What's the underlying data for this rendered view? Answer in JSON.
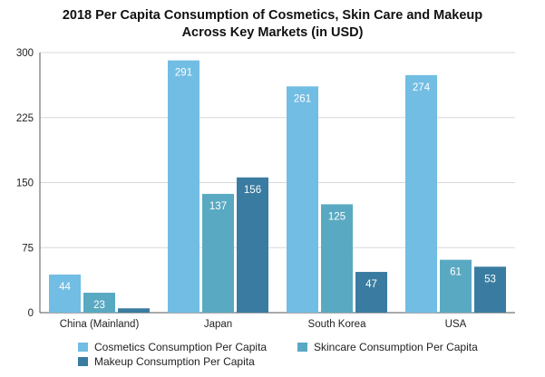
{
  "chart_data": {
    "type": "bar",
    "title_lines": [
      "2018 Per Capita Consumption of Cosmetics, Skin Care and Makeup",
      "Across Key Markets (in USD)"
    ],
    "categories": [
      "China (Mainland)",
      "Japan",
      "South Korea",
      "USA"
    ],
    "series": [
      {
        "name": "Cosmetics Consumption Per Capita",
        "color": "#72bde3",
        "values": [
          44,
          291,
          261,
          274
        ],
        "labels": [
          "44",
          "291",
          "261",
          "274"
        ]
      },
      {
        "name": "Skincare Consumption Per Capita",
        "color": "#5aa9c2",
        "values": [
          23,
          137,
          125,
          61
        ],
        "labels": [
          "23",
          "137",
          "125",
          "61"
        ]
      },
      {
        "name": "Makeup Consumption Per Capita",
        "color": "#3a7ca1",
        "values": [
          5,
          156,
          47,
          53
        ],
        "labels": [
          "",
          "156",
          "47",
          "53"
        ]
      }
    ],
    "ylim": [
      0,
      300
    ],
    "yticks": [
      0,
      75,
      150,
      225,
      300
    ],
    "ytick_labels": [
      "0",
      "75",
      "150",
      "225",
      "300"
    ],
    "grid": true,
    "legend_position": "bottom"
  }
}
